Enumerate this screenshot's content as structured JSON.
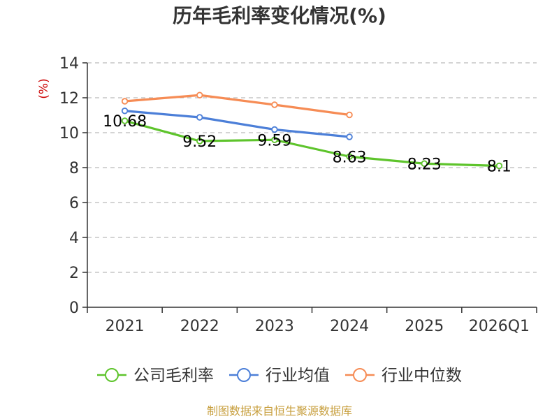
{
  "chart_data": {
    "type": "line",
    "title": "历年毛利率变化情况(%)",
    "ylabel": "(%)",
    "xlabel": "",
    "ylim": [
      0,
      14
    ],
    "yticks": [
      0,
      2,
      4,
      6,
      8,
      10,
      12,
      14
    ],
    "categories": [
      "2021",
      "2022",
      "2023",
      "2024",
      "2025",
      "2026Q1"
    ],
    "series": [
      {
        "name": "公司毛利率",
        "color": "#5ec42c",
        "values": [
          10.68,
          9.52,
          9.59,
          8.63,
          8.23,
          8.1
        ],
        "labels": [
          "10.68",
          "9.52",
          "9.59",
          "8.63",
          "8.23",
          "8.1"
        ]
      },
      {
        "name": "行业均值",
        "color": "#4c7fd8",
        "values": [
          11.25,
          10.88,
          10.18,
          9.76,
          null,
          null
        ]
      },
      {
        "name": "行业中位数",
        "color": "#f68c55",
        "values": [
          11.8,
          12.15,
          11.6,
          11.02,
          null,
          null
        ]
      }
    ],
    "grid": true,
    "legend_position": "bottom",
    "colors": {
      "unit_label": "#cc0000",
      "source_text": "#c8a040",
      "axis": "#333333",
      "grid": "#bbbbbb"
    }
  },
  "source": "制图数据来自恒生聚源数据库"
}
